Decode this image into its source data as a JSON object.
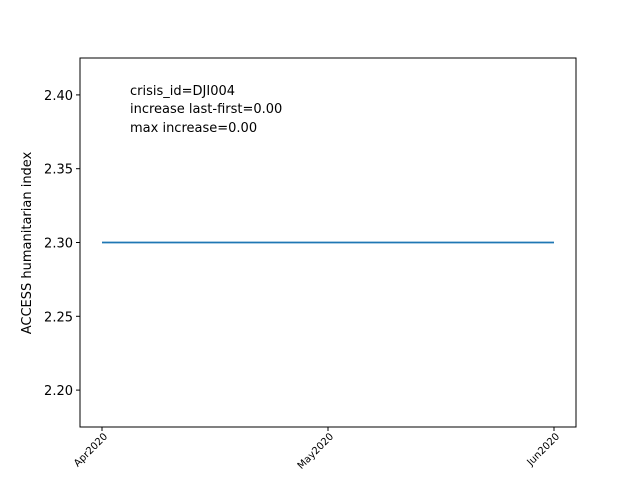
{
  "chart_data": {
    "type": "line",
    "title": "",
    "xlabel": "",
    "ylabel": "ACCESS humanitarian index",
    "categories": [
      "Apr2020",
      "May2020",
      "Jun2020"
    ],
    "series": [
      {
        "name": "DJI004",
        "x": [
          "Apr2020",
          "May2020",
          "Jun2020"
        ],
        "values": [
          2.3,
          2.3,
          2.3
        ],
        "color": "#1f77b4"
      }
    ],
    "ylim": [
      2.175,
      2.425
    ],
    "yticks": [
      2.2,
      2.25,
      2.3,
      2.35,
      2.4
    ],
    "ytick_labels": [
      "2.20",
      "2.25",
      "2.30",
      "2.35",
      "2.40"
    ],
    "xtick_labels": [
      "Apr2020",
      "May2020",
      "Jun2020"
    ],
    "grid": false,
    "annotations": [
      "crisis_id=DJI004",
      "increase last-first=0.00",
      "max increase=0.00"
    ]
  }
}
